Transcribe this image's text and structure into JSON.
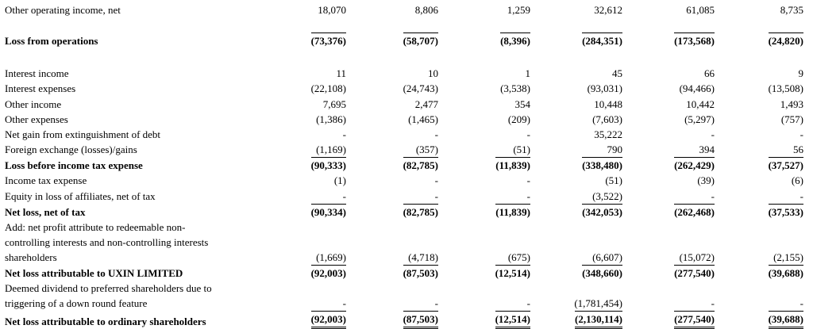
{
  "rows": [
    {
      "label": "Other operating income, net",
      "values": [
        "18,070",
        "8,806",
        "1,259",
        "32,612",
        "61,085",
        "8,735"
      ],
      "bold": false
    },
    {
      "label": "Loss from operations",
      "values": [
        "(73,376)",
        "(58,707)",
        "(8,396)",
        "(284,351)",
        "(173,568)",
        "(24,820)"
      ],
      "bold": true
    },
    {
      "label": "Interest income",
      "values": [
        "11",
        "10",
        "1",
        "45",
        "66",
        "9"
      ],
      "bold": false
    },
    {
      "label": "Interest expenses",
      "values": [
        "(22,108)",
        "(24,743)",
        "(3,538)",
        "(93,031)",
        "(94,466)",
        "(13,508)"
      ],
      "bold": false
    },
    {
      "label": "Other income",
      "values": [
        "7,695",
        "2,477",
        "354",
        "10,448",
        "10,442",
        "1,493"
      ],
      "bold": false
    },
    {
      "label": "Other expenses",
      "values": [
        "(1,386)",
        "(1,465)",
        "(209)",
        "(7,603)",
        "(5,297)",
        "(757)"
      ],
      "bold": false
    },
    {
      "label": "Net gain from extinguishment of debt",
      "values": [
        "-",
        "-",
        "-",
        "35,222",
        "-",
        "-"
      ],
      "bold": false
    },
    {
      "label": "Foreign exchange (losses)/gains",
      "values": [
        "(1,169)",
        "(357)",
        "(51)",
        "790",
        "394",
        "56"
      ],
      "bold": false
    },
    {
      "label": "Loss before income tax expense",
      "values": [
        "(90,333)",
        "(82,785)",
        "(11,839)",
        "(338,480)",
        "(262,429)",
        "(37,527)"
      ],
      "bold": true
    },
    {
      "label": "Income tax expense",
      "values": [
        "(1)",
        "-",
        "-",
        "(51)",
        "(39)",
        "(6)"
      ],
      "bold": false
    },
    {
      "label": "Equity in loss of affiliates, net of tax",
      "values": [
        "-",
        "-",
        "-",
        "(3,522)",
        "-",
        "-"
      ],
      "bold": false
    },
    {
      "label": "Net loss, net of tax",
      "values": [
        "(90,334)",
        "(82,785)",
        "(11,839)",
        "(342,053)",
        "(262,468)",
        "(37,533)"
      ],
      "bold": true
    },
    {
      "label_lines": [
        "Add: net profit attribute to redeemable non-",
        "controlling interests and non-controlling interests",
        "shareholders"
      ],
      "values": [
        "(1,669)",
        "(4,718)",
        "(675)",
        "(6,607)",
        "(15,072)",
        "(2,155)"
      ],
      "bold": false
    },
    {
      "label": "Net loss attributable to UXIN LIMITED",
      "values": [
        "(92,003)",
        "(87,503)",
        "(12,514)",
        "(348,660)",
        "(277,540)",
        "(39,688)"
      ],
      "bold": true
    },
    {
      "label_lines": [
        "Deemed dividend to preferred shareholders due to",
        "triggering of a down round feature"
      ],
      "values": [
        "-",
        "-",
        "-",
        "(1,781,454)",
        "-",
        "-"
      ],
      "bold": false
    },
    {
      "label": "Net loss attributable to ordinary shareholders",
      "values": [
        "(92,003)",
        "(87,503)",
        "(12,514)",
        "(2,130,114)",
        "(277,540)",
        "(39,688)"
      ],
      "bold": true
    }
  ]
}
